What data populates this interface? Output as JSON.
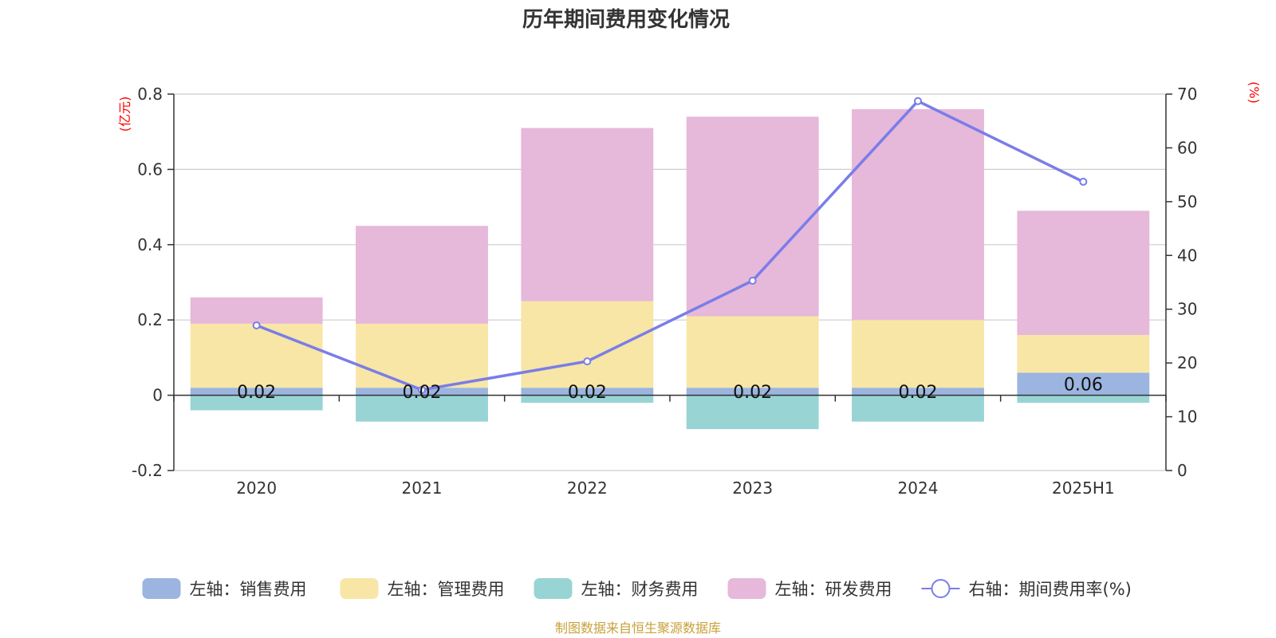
{
  "chart_data": {
    "type": "bar",
    "title": "历年期间费用变化情况",
    "categories": [
      "2020",
      "2021",
      "2022",
      "2023",
      "2024",
      "2025H1"
    ],
    "series": [
      {
        "name": "左轴：销售费用",
        "axis": "left",
        "color": "#9bb5e0",
        "values": [
          0.02,
          0.02,
          0.02,
          0.02,
          0.02,
          0.06
        ],
        "data_labels": [
          "0.02",
          "0.02",
          "0.02",
          "0.02",
          "0.02",
          "0.06"
        ]
      },
      {
        "name": "左轴：管理费用",
        "axis": "left",
        "color": "#f7e6a6",
        "values": [
          0.17,
          0.17,
          0.23,
          0.19,
          0.18,
          0.1
        ]
      },
      {
        "name": "左轴：财务费用",
        "axis": "left",
        "color": "#98d4d4",
        "values": [
          -0.04,
          -0.07,
          -0.02,
          -0.09,
          -0.07,
          -0.02
        ]
      },
      {
        "name": "左轴：研发费用",
        "axis": "left",
        "color": "#e6b8da",
        "values": [
          0.07,
          0.26,
          0.46,
          0.53,
          0.56,
          0.33
        ]
      },
      {
        "name": "右轴：期间费用率(%)",
        "axis": "right",
        "type": "line",
        "color": "#7a7de8",
        "values": [
          27.0,
          15.0,
          20.3,
          35.3,
          68.7,
          53.7
        ]
      }
    ],
    "left_axis": {
      "unit": "(亿元)",
      "ylim": [
        -0.2,
        0.8
      ],
      "ticks": [
        "-0.2",
        "0",
        "0.2",
        "0.4",
        "0.6",
        "0.8"
      ],
      "tick_values": [
        -0.2,
        0,
        0.2,
        0.4,
        0.6,
        0.8
      ]
    },
    "right_axis": {
      "unit": "(%)",
      "ylim": [
        0,
        70
      ],
      "ticks": [
        "0",
        "10",
        "20",
        "30",
        "40",
        "50",
        "60",
        "70"
      ],
      "tick_values": [
        0,
        10,
        20,
        30,
        40,
        50,
        60,
        70
      ]
    },
    "grid": true,
    "legend_position": "bottom",
    "source_note": "制图数据来自恒生聚源数据库"
  }
}
